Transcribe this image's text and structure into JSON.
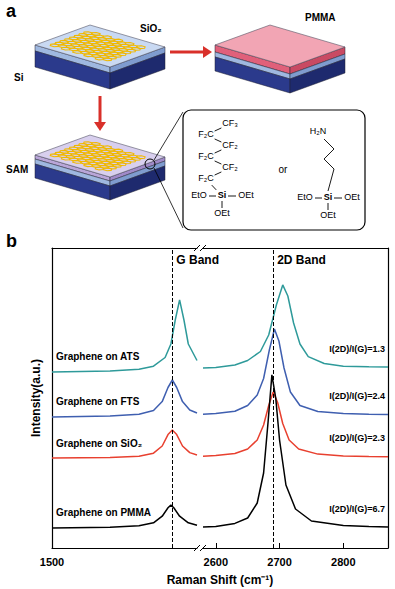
{
  "panel_a": {
    "letter": "a",
    "substrate_labels": {
      "sio2": "SiO₂",
      "si": "Si"
    },
    "coating_label": "PMMA",
    "sam_label": "SAM",
    "fts": {
      "chain": [
        "CF₃",
        "F₂C",
        "CF₂",
        "F₂C",
        "CF₂",
        "F₂C"
      ],
      "si": "Si",
      "groups": [
        "EtO",
        "OEt",
        "OEt"
      ]
    },
    "separator": "or",
    "ats": {
      "head": "H₂N",
      "si": "Si",
      "groups": [
        "EtO",
        "OEt",
        "OEt"
      ]
    }
  },
  "chart_data": {
    "type": "line",
    "letter": "b",
    "xlabel": "Raman Shift (cm⁻¹)",
    "ylabel": "Intensity(a.u.)",
    "ylim": [
      0,
      100
    ],
    "tick_labels": "x",
    "grid": false,
    "segments": [
      {
        "xlim": [
          1500,
          1600
        ],
        "xticks": [
          1500
        ]
      },
      {
        "xlim": [
          2580,
          2870
        ],
        "xticks": [
          2600,
          2700,
          2800
        ]
      }
    ],
    "annotations": [
      {
        "text": "G Band",
        "x": 1583,
        "segment": 0
      },
      {
        "text": "2D Band",
        "x": 2690,
        "segment": 1
      }
    ],
    "series": [
      {
        "name": "Graphene on ATS",
        "color": "#2e9a9a",
        "annotation": "I(2D)/I(G)=1.3",
        "segments": [
          {
            "x": [
              1500,
              1540,
              1560,
              1570,
              1578,
              1582,
              1585,
              1588,
              1591,
              1594,
              1600
            ],
            "values": [
              58.7,
              59,
              59.6,
              60.6,
              63.5,
              68,
              76,
              82.7,
              76,
              68,
              62.5
            ]
          },
          {
            "x": [
              2580,
              2600,
              2630,
              2650,
              2670,
              2683,
              2695,
              2705,
              2713,
              2722,
              2732,
              2745,
              2770,
              2800,
              2840,
              2870
            ],
            "values": [
              60,
              60.2,
              61,
              62.5,
              65.5,
              71,
              81,
              87.7,
              84,
              75,
              68,
              63.8,
              61.5,
              60.6,
              60.4,
              60.3
            ]
          }
        ]
      },
      {
        "name": "Graphene on FTS",
        "color": "#3f5fb0",
        "annotation": "I(2D)/I(G)=2.4",
        "segments": [
          {
            "x": [
              1500,
              1540,
              1560,
              1570,
              1576,
              1580,
              1583,
              1586,
              1590,
              1595,
              1600
            ],
            "values": [
              43.7,
              44,
              44.6,
              45.8,
              48.8,
              53.5,
              56,
              53.5,
              48.8,
              46,
              45
            ]
          },
          {
            "x": [
              2580,
              2600,
              2630,
              2650,
              2665,
              2675,
              2684,
              2692,
              2699,
              2707,
              2717,
              2732,
              2760,
              2800,
              2840,
              2870
            ],
            "values": [
              44.6,
              44.8,
              45.6,
              47.5,
              51,
              56.5,
              66,
              73,
              69,
              60,
              52,
              47.5,
              45.5,
              44.8,
              44.6,
              44.5
            ]
          }
        ]
      },
      {
        "name": "Graphene on SiO₂",
        "color": "#e8402f",
        "annotation": "I(2D)/I(G)=2.3",
        "segments": [
          {
            "x": [
              1500,
              1540,
              1560,
              1570,
              1576,
              1580,
              1583,
              1586,
              1590,
              1595,
              1600
            ],
            "values": [
              30,
              30.2,
              30.6,
              31.6,
              34,
              37.8,
              39.3,
              37.8,
              34,
              31.8,
              31
            ]
          },
          {
            "x": [
              2580,
              2600,
              2630,
              2650,
              2665,
              2675,
              2683,
              2690,
              2697,
              2705,
              2715,
              2730,
              2760,
              2800,
              2840,
              2870
            ],
            "values": [
              30.6,
              30.8,
              31.5,
              33,
              36,
              41,
              47.5,
              52,
              48.5,
              41.5,
              36,
              33,
              31.3,
              30.7,
              30.5,
              30.4
            ]
          }
        ]
      },
      {
        "name": "Graphene on PMMA",
        "color": "#000000",
        "annotation": "I(2D)/I(G)=6.7",
        "segments": [
          {
            "x": [
              1500,
              1540,
              1560,
              1570,
              1576,
              1580,
              1582,
              1584,
              1588,
              1594,
              1600
            ],
            "values": [
              6.7,
              6.9,
              7.4,
              8.4,
              10.6,
              13.4,
              14.3,
              13.4,
              10.6,
              8.4,
              7.6
            ]
          },
          {
            "x": [
              2580,
              2600,
              2630,
              2650,
              2665,
              2675,
              2682,
              2688,
              2694,
              2700,
              2710,
              2725,
              2750,
              2800,
              2840,
              2870
            ],
            "values": [
              7,
              7.2,
              8.2,
              10,
              15,
              25,
              42,
              57.7,
              50,
              36,
              21,
              13,
              9,
              7.5,
              7.2,
              7
            ]
          }
        ]
      }
    ]
  }
}
